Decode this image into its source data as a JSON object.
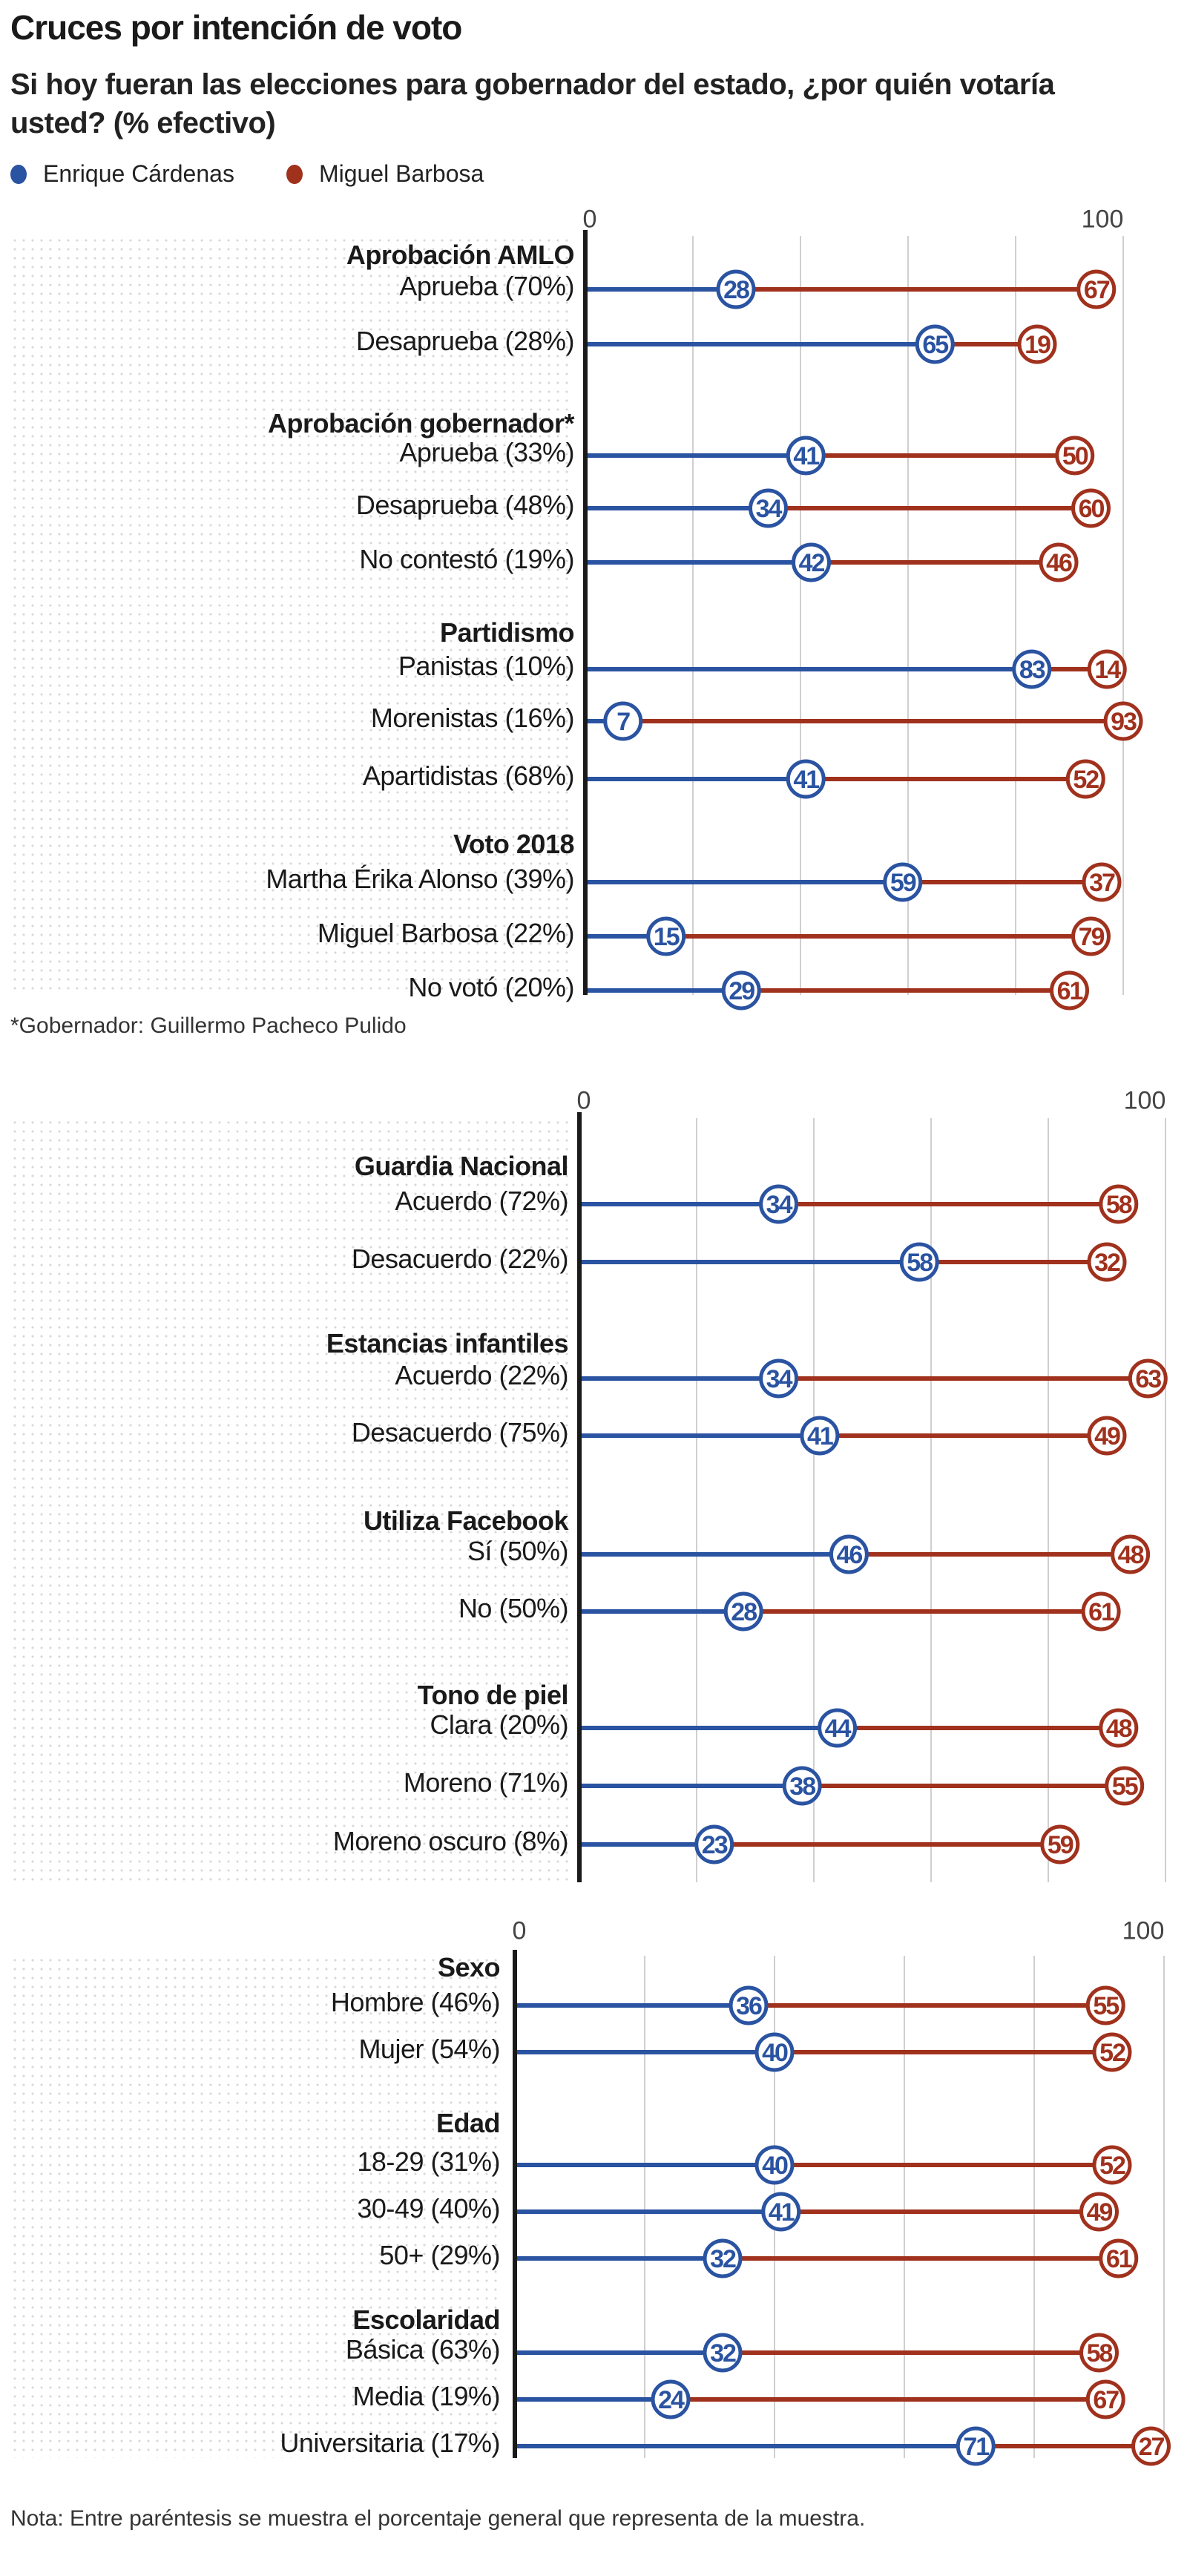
{
  "title": "Cruces por intención de voto",
  "subtitle": "Si hoy fueran las elecciones para gobernador del estado, ¿por quién votaría usted? (% efectivo)",
  "legend": [
    {
      "name": "Enrique Cárdenas",
      "color": "#2a53a1"
    },
    {
      "name": "Miguel Barbosa",
      "color": "#a0311d"
    }
  ],
  "footnote_1": "*Gobernador: Guillermo Pacheco Pulido",
  "nota": "Nota: Entre paréntesis se muestra el porcentaje general que representa de la muestra.",
  "chart_data": [
    {
      "type": "bar",
      "stacked": true,
      "xlim": [
        0,
        100
      ],
      "tick_labels": [
        "0",
        "100"
      ],
      "grid": true,
      "groups": [
        {
          "title": "Aprobación AMLO",
          "rows": [
            {
              "label": "Aprueba (70%)",
              "cardenas": 28,
              "barbosa": 67
            },
            {
              "label": "Desaprueba (28%)",
              "cardenas": 65,
              "barbosa": 19
            }
          ]
        },
        {
          "title": "Aprobación gobernador*",
          "rows": [
            {
              "label": "Aprueba (33%)",
              "cardenas": 41,
              "barbosa": 50
            },
            {
              "label": "Desaprueba (48%)",
              "cardenas": 34,
              "barbosa": 60
            },
            {
              "label": "No contestó (19%)",
              "cardenas": 42,
              "barbosa": 46
            }
          ]
        },
        {
          "title": "Partidismo",
          "rows": [
            {
              "label": "Panistas (10%)",
              "cardenas": 83,
              "barbosa": 14
            },
            {
              "label": "Morenistas (16%)",
              "cardenas": 7,
              "barbosa": 93
            },
            {
              "label": "Apartidistas (68%)",
              "cardenas": 41,
              "barbosa": 52
            }
          ]
        },
        {
          "title": "Voto 2018",
          "rows": [
            {
              "label": "Martha Érika Alonso (39%)",
              "cardenas": 59,
              "barbosa": 37
            },
            {
              "label": "Miguel Barbosa (22%)",
              "cardenas": 15,
              "barbosa": 79
            },
            {
              "label": "No votó (20%)",
              "cardenas": 29,
              "barbosa": 61
            }
          ]
        }
      ]
    },
    {
      "type": "bar",
      "stacked": true,
      "xlim": [
        0,
        100
      ],
      "tick_labels": [
        "0",
        "100"
      ],
      "grid": true,
      "groups": [
        {
          "title": "Guardia Nacional",
          "rows": [
            {
              "label": "Acuerdo (72%)",
              "cardenas": 34,
              "barbosa": 58
            },
            {
              "label": "Desacuerdo (22%)",
              "cardenas": 58,
              "barbosa": 32
            }
          ]
        },
        {
          "title": "Estancias infantiles",
          "rows": [
            {
              "label": "Acuerdo (22%)",
              "cardenas": 34,
              "barbosa": 63
            },
            {
              "label": "Desacuerdo (75%)",
              "cardenas": 41,
              "barbosa": 49
            }
          ]
        },
        {
          "title": "Utiliza Facebook",
          "rows": [
            {
              "label": "Sí (50%)",
              "cardenas": 46,
              "barbosa": 48
            },
            {
              "label": "No (50%)",
              "cardenas": 28,
              "barbosa": 61
            }
          ]
        },
        {
          "title": "Tono de piel",
          "rows": [
            {
              "label": "Clara (20%)",
              "cardenas": 44,
              "barbosa": 48
            },
            {
              "label": "Moreno (71%)",
              "cardenas": 38,
              "barbosa": 55
            },
            {
              "label": "Moreno oscuro (8%)",
              "cardenas": 23,
              "barbosa": 59
            }
          ]
        }
      ]
    },
    {
      "type": "bar",
      "stacked": true,
      "xlim": [
        0,
        100
      ],
      "tick_labels": [
        "0",
        "100"
      ],
      "grid": true,
      "groups": [
        {
          "title": "Sexo",
          "rows": [
            {
              "label": "Hombre (46%)",
              "cardenas": 36,
              "barbosa": 55
            },
            {
              "label": "Mujer (54%)",
              "cardenas": 40,
              "barbosa": 52
            }
          ]
        },
        {
          "title": "Edad",
          "rows": [
            {
              "label": "18-29 (31%)",
              "cardenas": 40,
              "barbosa": 52
            },
            {
              "label": "30-49 (40%)",
              "cardenas": 41,
              "barbosa": 49
            },
            {
              "label": "50+ (29%)",
              "cardenas": 32,
              "barbosa": 61
            }
          ]
        },
        {
          "title": "Escolaridad",
          "rows": [
            {
              "label": "Básica (63%)",
              "cardenas": 32,
              "barbosa": 58
            },
            {
              "label": "Media (19%)",
              "cardenas": 24,
              "barbosa": 67
            },
            {
              "label": "Universitaria (17%)",
              "cardenas": 71,
              "barbosa": 27
            }
          ]
        }
      ]
    }
  ]
}
